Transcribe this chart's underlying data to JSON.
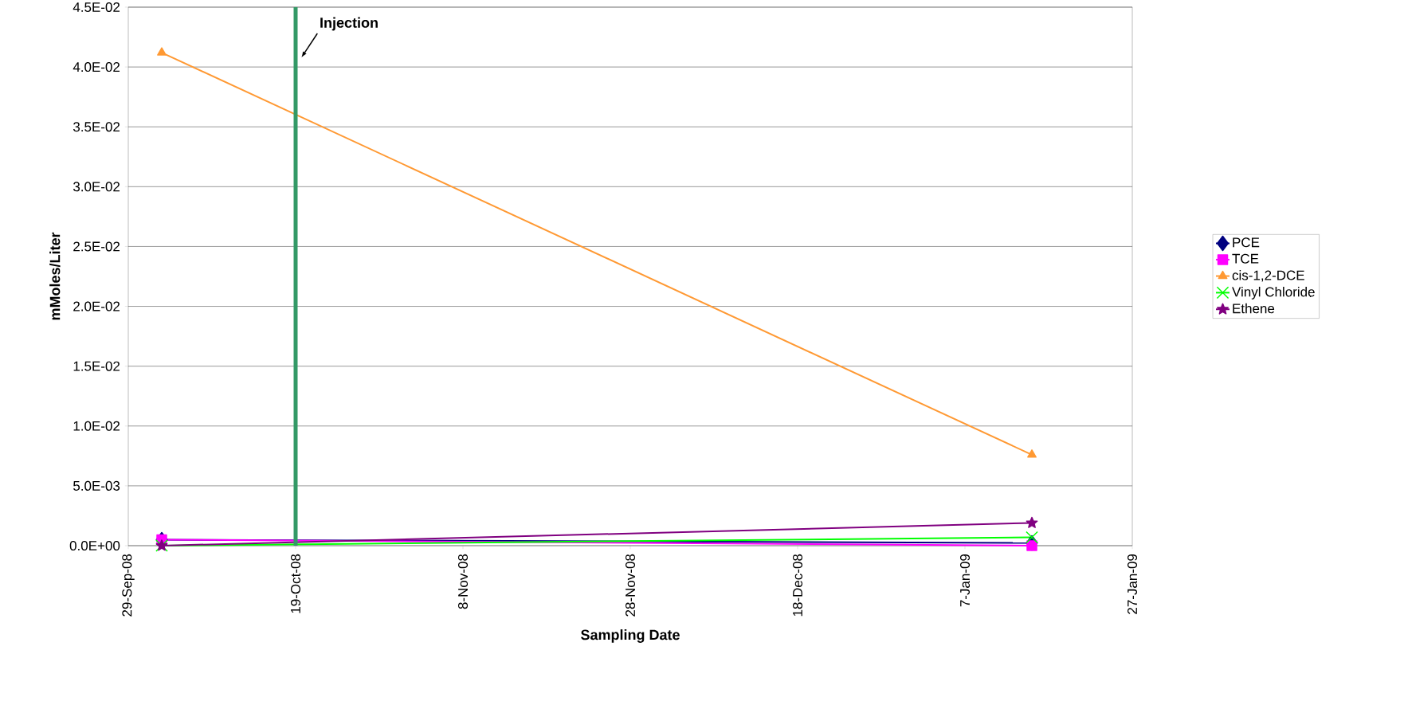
{
  "chart_data": {
    "type": "line",
    "xlabel": "Sampling Date",
    "ylabel": "mMoles/Liter",
    "x": [
      "2008-10-03",
      "2009-01-15"
    ],
    "series": [
      {
        "name": "PCE",
        "color": "#000080",
        "marker": "diamond",
        "values": [
          0.0005,
          0.00023
        ]
      },
      {
        "name": "TCE",
        "color": "#ff00ff",
        "marker": "square",
        "values": [
          0.0005,
          0.0
        ]
      },
      {
        "name": "cis-1,2-DCE",
        "color": "#ff9933",
        "marker": "triangle",
        "values": [
          0.0412,
          0.0076
        ]
      },
      {
        "name": "Vinyl Chloride",
        "color": "#00ff00",
        "marker": "cross",
        "values": [
          0.0,
          0.0007
        ]
      },
      {
        "name": "Ethene",
        "color": "#800080",
        "marker": "star",
        "values": [
          0.0,
          0.0019
        ]
      }
    ],
    "xlim": [
      "2008-09-29",
      "2009-01-27"
    ],
    "xticks": [
      {
        "value": "2008-09-29",
        "label": "29-Sep-08"
      },
      {
        "value": "2008-10-19",
        "label": "19-Oct-08"
      },
      {
        "value": "2008-11-08",
        "label": "8-Nov-08"
      },
      {
        "value": "2008-11-28",
        "label": "28-Nov-08"
      },
      {
        "value": "2008-12-18",
        "label": "18-Dec-08"
      },
      {
        "value": "2009-01-07",
        "label": "7-Jan-09"
      },
      {
        "value": "2009-01-27",
        "label": "27-Jan-09"
      }
    ],
    "ylim": [
      0,
      0.045
    ],
    "yticks": [
      {
        "value": 0,
        "label": "0.0E+00"
      },
      {
        "value": 0.005,
        "label": "5.0E-03"
      },
      {
        "value": 0.01,
        "label": "1.0E-02"
      },
      {
        "value": 0.015,
        "label": "1.5E-02"
      },
      {
        "value": 0.02,
        "label": "2.0E-02"
      },
      {
        "value": 0.025,
        "label": "2.5E-02"
      },
      {
        "value": 0.03,
        "label": "3.0E-02"
      },
      {
        "value": 0.035,
        "label": "3.5E-02"
      },
      {
        "value": 0.04,
        "label": "4.0E-02"
      },
      {
        "value": 0.045,
        "label": "4.5E-02"
      }
    ],
    "ref_lines": [
      {
        "axis": "x",
        "value": "2008-10-19",
        "label": "Injection",
        "color": "#339966"
      }
    ],
    "grid": "y",
    "legend": "right"
  }
}
